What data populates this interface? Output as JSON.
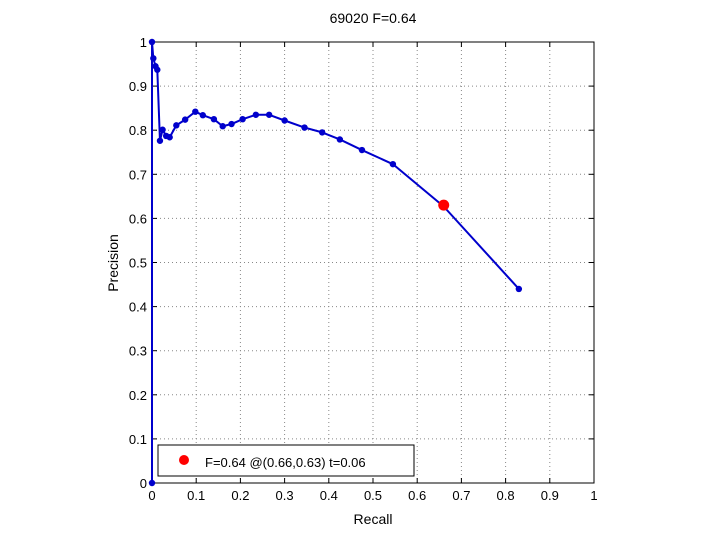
{
  "chart_data": {
    "type": "line",
    "title": "69020 F=0.64",
    "xlabel": "Recall",
    "ylabel": "Precision",
    "xlim": [
      0,
      1
    ],
    "ylim": [
      0,
      1
    ],
    "grid": true,
    "legend_position": "bottom-left",
    "x_ticks": [
      "0",
      "0.1",
      "0.2",
      "0.3",
      "0.4",
      "0.5",
      "0.6",
      "0.7",
      "0.8",
      "0.9",
      "1"
    ],
    "y_ticks": [
      "0",
      "0.1",
      "0.2",
      "0.3",
      "0.4",
      "0.5",
      "0.6",
      "0.7",
      "0.8",
      "0.9",
      "1"
    ],
    "colors": {
      "series": "#0000cc",
      "marker": "#ff0000",
      "grid": "#888888"
    },
    "series": [
      {
        "x": [
          0.0,
          0.0,
          0.003,
          0.008,
          0.012,
          0.018,
          0.024,
          0.032,
          0.04,
          0.055,
          0.075,
          0.098,
          0.115,
          0.14,
          0.16,
          0.18,
          0.205,
          0.235,
          0.265,
          0.3,
          0.345,
          0.385,
          0.425,
          0.475,
          0.545,
          0.66,
          0.83
        ],
        "y": [
          0.0,
          1.0,
          0.963,
          0.945,
          0.937,
          0.776,
          0.801,
          0.787,
          0.784,
          0.811,
          0.824,
          0.842,
          0.834,
          0.825,
          0.809,
          0.814,
          0.825,
          0.835,
          0.835,
          0.822,
          0.806,
          0.795,
          0.779,
          0.755,
          0.723,
          0.627,
          0.44
        ]
      }
    ],
    "highlight": {
      "x": 0.66,
      "y": 0.63,
      "label": "F=0.64 @(0.66,0.63) t=0.06"
    }
  }
}
